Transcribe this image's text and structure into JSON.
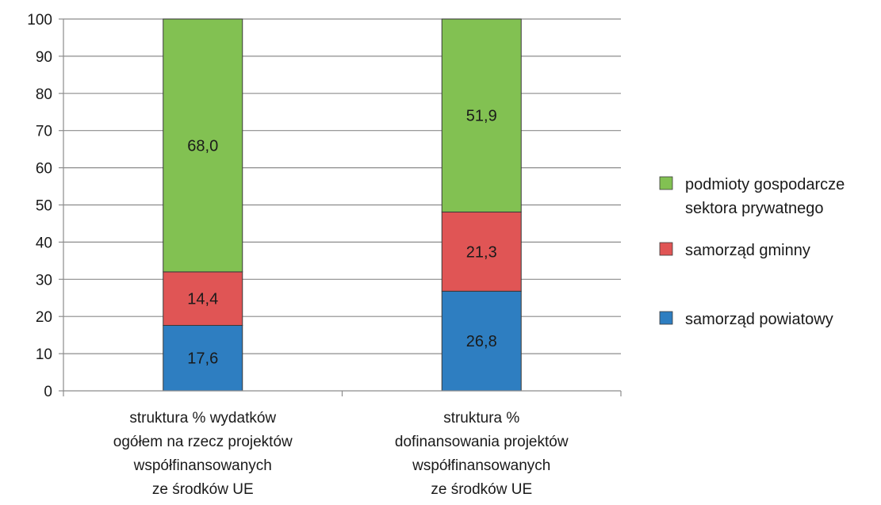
{
  "chart_data": {
    "type": "bar",
    "stacked": true,
    "categories": [
      [
        "struktura % wydatków",
        "ogółem na rzecz projektów",
        "współfinansowanych",
        "ze środków UE"
      ],
      [
        "struktura %",
        "dofinansowania projektów",
        "współfinansowanych",
        "ze środków UE"
      ]
    ],
    "series": [
      {
        "name": "samorząd powiatowy",
        "color": "#2e7ec1",
        "values": [
          17.6,
          26.8
        ],
        "labels": [
          "17,6",
          "26,8"
        ]
      },
      {
        "name": "samorząd gminny",
        "color": "#e05555",
        "values": [
          14.4,
          21.3
        ],
        "labels": [
          "14,4",
          "21,3"
        ]
      },
      {
        "name": "podmioty gospodarcze sektora prywatnego",
        "legend_lines": [
          "podmioty gospodarcze",
          "sektora prywatnego"
        ],
        "color": "#82c152",
        "values": [
          68.0,
          51.9
        ],
        "labels": [
          "68,0",
          "51,9"
        ]
      }
    ],
    "ylim": [
      0,
      100
    ],
    "yticks": [
      0,
      10,
      20,
      30,
      40,
      50,
      60,
      70,
      80,
      90,
      100
    ],
    "grid": true,
    "legend_position": "right",
    "legend_order": [
      2,
      1,
      0
    ],
    "title": "",
    "xlabel": "",
    "ylabel": ""
  }
}
